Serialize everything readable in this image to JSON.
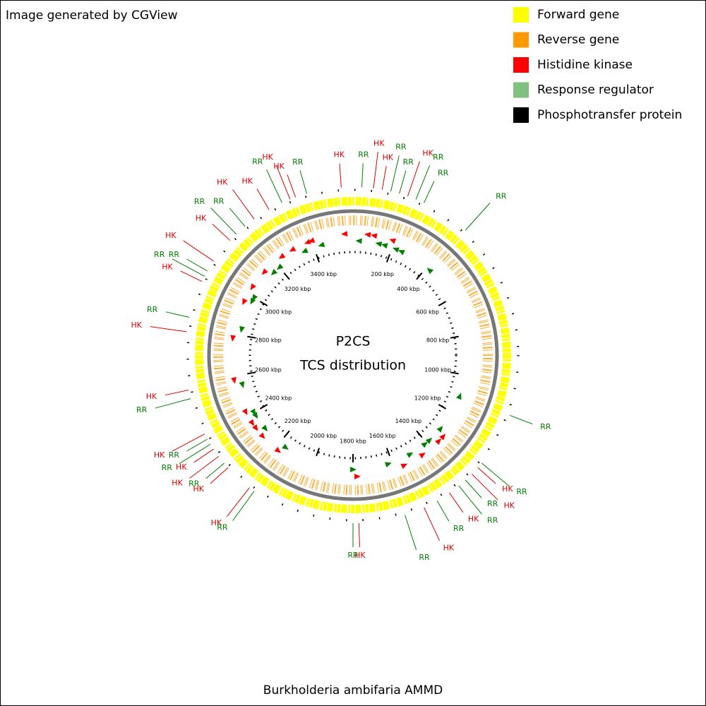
{
  "header": {
    "text": "Image generated by CGView"
  },
  "footer": {
    "text": "Burkholderia ambifaria AMMD"
  },
  "chart_data": {
    "type": "circular",
    "title": "P2CS",
    "subtitle": "TCS distribution",
    "xlim": [
      0,
      3600
    ],
    "xticks": [
      {
        "value": 200,
        "label": "200 kbp"
      },
      {
        "value": 400,
        "label": "400 kbp"
      },
      {
        "value": 600,
        "label": "600 kbp"
      },
      {
        "value": 800,
        "label": "800 kbp"
      },
      {
        "value": 1000,
        "label": "1000 kbp"
      },
      {
        "value": 1200,
        "label": "1200 kbp"
      },
      {
        "value": 1400,
        "label": "1400 kbp"
      },
      {
        "value": 1600,
        "label": "1600 kbp"
      },
      {
        "value": 1800,
        "label": "1800 kbp"
      },
      {
        "value": 2000,
        "label": "2000 kbp"
      },
      {
        "value": 2200,
        "label": "2200 kbp"
      },
      {
        "value": 2400,
        "label": "2400 kbp"
      },
      {
        "value": 2600,
        "label": "2600 kbp"
      },
      {
        "value": 2800,
        "label": "2800 kbp"
      },
      {
        "value": 3000,
        "label": "3000 kbp"
      },
      {
        "value": 3200,
        "label": "3200 kbp"
      },
      {
        "value": 3400,
        "label": "3400 kbp"
      }
    ],
    "series": [
      {
        "name": "Forward gene",
        "color": "#ffff00"
      },
      {
        "name": "Reverse gene",
        "color": "#ff9900"
      },
      {
        "name": "Histidine kinase",
        "color": "#ff0000",
        "label": "HK",
        "label_color": "#e00000",
        "x": [
          3560,
          70,
          100,
          190,
          1320,
          1350,
          1450,
          1550,
          1780,
          2180,
          2280,
          2330,
          2360,
          2420,
          2580,
          2780,
          2960,
          3040,
          3130,
          3240,
          3300,
          3380,
          3400
        ]
      },
      {
        "name": "Response regulator",
        "color": "#80c080",
        "label": "RR",
        "label_color": "#008000",
        "x": [
          30,
          130,
          160,
          220,
          250,
          420,
          1110,
          1300,
          1380,
          1410,
          1500,
          1620,
          1800,
          2160,
          2300,
          2380,
          2400,
          2550,
          2830,
          2980,
          3000,
          3160,
          3200,
          3350,
          3440
        ]
      },
      {
        "name": "Phosphotransfer protein",
        "color": "#000000"
      }
    ]
  }
}
